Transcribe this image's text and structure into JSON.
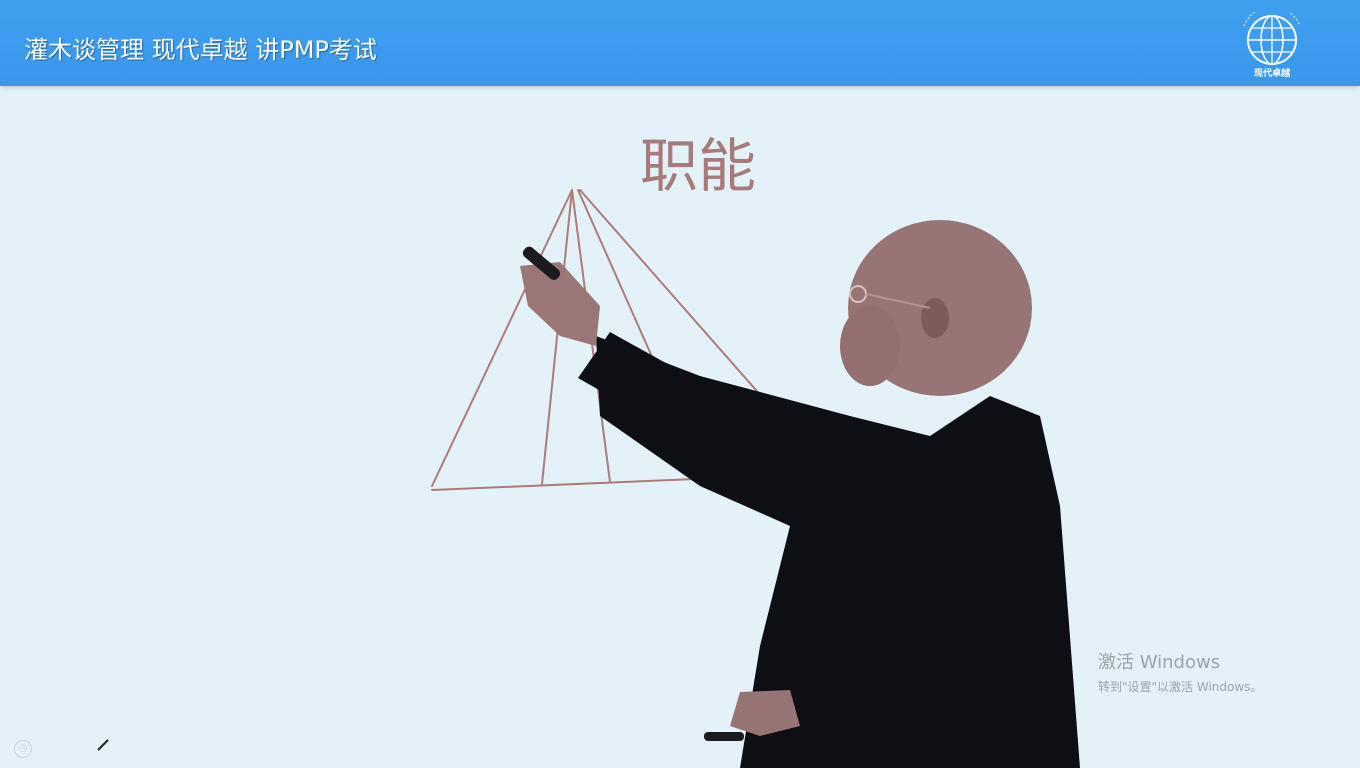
{
  "header": {
    "title": "灌木谈管理 现代卓越 讲PMP考试",
    "logo_label": "现代卓越"
  },
  "board": {
    "handwritten_word": "职能"
  },
  "watermark": {
    "line1": "激活 Windows",
    "line2": "转到\"设置\"以激活 Windows。"
  },
  "colors": {
    "header": "#3a97ea",
    "board": "#e2f2f8",
    "ink": "#b07a78"
  },
  "icons": {
    "bottom_left": "clock-icon",
    "pen": "pen-icon"
  }
}
